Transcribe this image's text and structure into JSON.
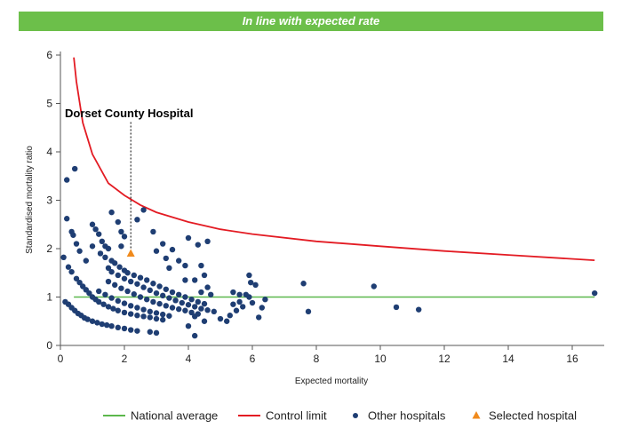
{
  "banner": {
    "text": "In line with expected rate"
  },
  "chart_data": {
    "type": "scatter",
    "title": "",
    "xlabel": "Expected mortality",
    "ylabel": "Standardised mortality ratio",
    "xlim": [
      0,
      17
    ],
    "ylim": [
      0,
      6
    ],
    "x_ticks": [
      0,
      2,
      4,
      6,
      8,
      10,
      12,
      14,
      16
    ],
    "y_ticks": [
      0,
      1,
      2,
      3,
      4,
      5,
      6
    ],
    "grid": false,
    "legend_position": "bottom-right",
    "colors": {
      "national_average": "#5cb84c",
      "control_limit": "#e31b23",
      "other_hospitals": "#1f3e73",
      "selected_hospital": "#f08a1c",
      "banner": "#6cbf4a"
    },
    "legend": [
      {
        "key": "national_average",
        "label": "National average",
        "marker": "line"
      },
      {
        "key": "control_limit",
        "label": "Control limit",
        "marker": "line"
      },
      {
        "key": "other_hospitals",
        "label": "Other hospitals",
        "marker": "dot"
      },
      {
        "key": "selected_hospital",
        "label": "Selected hospital",
        "marker": "triangle"
      }
    ],
    "national_average": 1,
    "control_limit": [
      [
        0.42,
        5.95
      ],
      [
        0.5,
        5.45
      ],
      [
        0.7,
        4.6
      ],
      [
        1.0,
        3.95
      ],
      [
        1.5,
        3.35
      ],
      [
        2.0,
        3.1
      ],
      [
        2.5,
        2.9
      ],
      [
        3.0,
        2.75
      ],
      [
        4.0,
        2.55
      ],
      [
        5.0,
        2.4
      ],
      [
        6.0,
        2.3
      ],
      [
        8.0,
        2.15
      ],
      [
        10.0,
        2.05
      ],
      [
        12.0,
        1.95
      ],
      [
        14.0,
        1.87
      ],
      [
        16.7,
        1.76
      ]
    ],
    "selected_hospital": {
      "name": "Dorset County Hospital",
      "x": 2.2,
      "y": 1.9
    },
    "other_hospitals": [
      [
        0.2,
        3.42
      ],
      [
        0.45,
        3.65
      ],
      [
        0.2,
        2.62
      ],
      [
        0.35,
        2.35
      ],
      [
        0.4,
        2.28
      ],
      [
        0.5,
        2.1
      ],
      [
        0.6,
        1.95
      ],
      [
        0.8,
        1.75
      ],
      [
        0.1,
        1.82
      ],
      [
        0.25,
        1.62
      ],
      [
        0.35,
        1.52
      ],
      [
        0.5,
        1.38
      ],
      [
        0.6,
        1.3
      ],
      [
        0.7,
        1.22
      ],
      [
        0.8,
        1.15
      ],
      [
        0.9,
        1.08
      ],
      [
        1.0,
        1.0
      ],
      [
        1.1,
        0.95
      ],
      [
        1.2,
        0.9
      ],
      [
        1.35,
        0.85
      ],
      [
        1.5,
        0.8
      ],
      [
        1.65,
        0.76
      ],
      [
        1.8,
        0.72
      ],
      [
        2.0,
        0.68
      ],
      [
        2.2,
        0.65
      ],
      [
        2.4,
        0.62
      ],
      [
        2.6,
        0.6
      ],
      [
        2.8,
        0.58
      ],
      [
        3.0,
        0.55
      ],
      [
        3.2,
        0.53
      ],
      [
        0.15,
        0.9
      ],
      [
        0.25,
        0.85
      ],
      [
        0.35,
        0.78
      ],
      [
        0.45,
        0.72
      ],
      [
        0.55,
        0.66
      ],
      [
        0.65,
        0.62
      ],
      [
        0.75,
        0.57
      ],
      [
        0.85,
        0.54
      ],
      [
        1.0,
        0.5
      ],
      [
        1.15,
        0.47
      ],
      [
        1.3,
        0.44
      ],
      [
        1.45,
        0.42
      ],
      [
        1.6,
        0.4
      ],
      [
        1.8,
        0.37
      ],
      [
        2.0,
        0.35
      ],
      [
        2.2,
        0.32
      ],
      [
        2.4,
        0.3
      ],
      [
        2.8,
        0.28
      ],
      [
        3.0,
        0.26
      ],
      [
        1.0,
        2.5
      ],
      [
        1.1,
        2.4
      ],
      [
        1.2,
        2.3
      ],
      [
        1.0,
        2.05
      ],
      [
        1.3,
        2.15
      ],
      [
        1.4,
        2.05
      ],
      [
        1.5,
        2.0
      ],
      [
        1.6,
        2.75
      ],
      [
        1.8,
        2.55
      ],
      [
        1.9,
        2.35
      ],
      [
        2.0,
        2.25
      ],
      [
        1.9,
        2.05
      ],
      [
        1.25,
        1.9
      ],
      [
        1.4,
        1.82
      ],
      [
        1.6,
        1.75
      ],
      [
        1.7,
        1.7
      ],
      [
        1.85,
        1.62
      ],
      [
        2.0,
        1.55
      ],
      [
        2.1,
        1.5
      ],
      [
        2.3,
        1.45
      ],
      [
        2.5,
        1.4
      ],
      [
        2.7,
        1.35
      ],
      [
        2.9,
        1.28
      ],
      [
        3.1,
        1.22
      ],
      [
        3.3,
        1.16
      ],
      [
        3.5,
        1.1
      ],
      [
        3.7,
        1.05
      ],
      [
        3.9,
        1.0
      ],
      [
        4.1,
        0.95
      ],
      [
        4.3,
        0.9
      ],
      [
        4.5,
        0.86
      ],
      [
        1.5,
        1.6
      ],
      [
        1.6,
        1.52
      ],
      [
        1.8,
        1.45
      ],
      [
        2.0,
        1.38
      ],
      [
        2.2,
        1.32
      ],
      [
        2.4,
        1.27
      ],
      [
        2.6,
        1.2
      ],
      [
        2.8,
        1.14
      ],
      [
        3.0,
        1.08
      ],
      [
        3.2,
        1.03
      ],
      [
        3.4,
        0.98
      ],
      [
        3.6,
        0.93
      ],
      [
        3.8,
        0.88
      ],
      [
        4.0,
        0.84
      ],
      [
        4.2,
        0.8
      ],
      [
        4.4,
        0.76
      ],
      [
        4.6,
        0.73
      ],
      [
        1.5,
        1.32
      ],
      [
        1.7,
        1.25
      ],
      [
        1.9,
        1.18
      ],
      [
        2.1,
        1.12
      ],
      [
        2.3,
        1.06
      ],
      [
        2.5,
        1.0
      ],
      [
        2.7,
        0.95
      ],
      [
        2.9,
        0.9
      ],
      [
        3.1,
        0.86
      ],
      [
        3.3,
        0.82
      ],
      [
        3.5,
        0.78
      ],
      [
        3.7,
        0.75
      ],
      [
        3.9,
        0.72
      ],
      [
        4.1,
        0.68
      ],
      [
        4.3,
        0.65
      ],
      [
        1.2,
        1.12
      ],
      [
        1.4,
        1.05
      ],
      [
        1.6,
        0.98
      ],
      [
        1.8,
        0.92
      ],
      [
        2.0,
        0.87
      ],
      [
        2.2,
        0.82
      ],
      [
        2.4,
        0.78
      ],
      [
        2.6,
        0.74
      ],
      [
        2.8,
        0.7
      ],
      [
        3.0,
        0.67
      ],
      [
        3.2,
        0.64
      ],
      [
        3.4,
        0.61
      ],
      [
        2.4,
        2.6
      ],
      [
        2.6,
        2.8
      ],
      [
        2.9,
        2.35
      ],
      [
        3.2,
        2.1
      ],
      [
        3.0,
        1.95
      ],
      [
        3.5,
        1.98
      ],
      [
        3.3,
        1.8
      ],
      [
        3.7,
        1.75
      ],
      [
        3.9,
        1.65
      ],
      [
        3.4,
        1.6
      ],
      [
        3.9,
        1.35
      ],
      [
        4.0,
        2.22
      ],
      [
        4.3,
        2.08
      ],
      [
        4.6,
        2.15
      ],
      [
        4.4,
        1.65
      ],
      [
        4.5,
        1.45
      ],
      [
        4.2,
        1.35
      ],
      [
        4.6,
        1.2
      ],
      [
        4.4,
        1.1
      ],
      [
        4.7,
        1.05
      ],
      [
        4.8,
        0.7
      ],
      [
        4.2,
        0.6
      ],
      [
        4.5,
        0.5
      ],
      [
        4.0,
        0.4
      ],
      [
        4.2,
        0.2
      ],
      [
        5.0,
        0.55
      ],
      [
        5.2,
        0.5
      ],
      [
        5.3,
        0.62
      ],
      [
        5.5,
        0.72
      ],
      [
        5.4,
        0.85
      ],
      [
        5.6,
        0.9
      ],
      [
        5.6,
        1.05
      ],
      [
        5.8,
        1.05
      ],
      [
        5.7,
        0.8
      ],
      [
        5.9,
        1.0
      ],
      [
        6.0,
        0.88
      ],
      [
        5.4,
        1.1
      ],
      [
        5.9,
        1.45
      ],
      [
        5.95,
        1.3
      ],
      [
        6.1,
        1.25
      ],
      [
        6.3,
        0.78
      ],
      [
        6.2,
        0.58
      ],
      [
        6.4,
        0.95
      ],
      [
        7.6,
        1.28
      ],
      [
        7.75,
        0.7
      ],
      [
        9.8,
        1.22
      ],
      [
        10.5,
        0.79
      ],
      [
        11.2,
        0.74
      ],
      [
        16.7,
        1.08
      ]
    ]
  }
}
